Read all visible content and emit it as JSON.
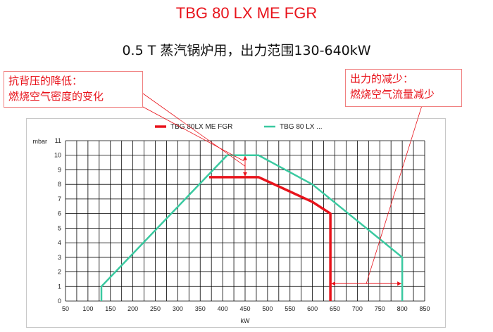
{
  "title": "TBG 80 LX ME FGR",
  "subtitle": "0.5 T 蒸汽锅炉用，出力范围130-640kW",
  "annotations": {
    "left": {
      "line1": "抗背压的降低：",
      "line2": "燃烧空气密度的变化"
    },
    "right": {
      "line1": "出力的减少：",
      "line2": "燃烧空气流量减少"
    }
  },
  "colors": {
    "red": "#e8131b",
    "green": "#3ac9a0",
    "grid": "#000000"
  },
  "chart_data": {
    "type": "line",
    "xlabel": "kW",
    "ylabel": "mbar",
    "xlim": [
      50,
      850
    ],
    "ylim": [
      0,
      11
    ],
    "xticks": [
      50,
      100,
      150,
      200,
      250,
      300,
      350,
      400,
      450,
      500,
      550,
      600,
      650,
      700,
      750,
      800,
      850
    ],
    "yticks": [
      0,
      1,
      2,
      3,
      4,
      5,
      6,
      7,
      8,
      9,
      10,
      11
    ],
    "minor_x_step": 25,
    "grid": true,
    "legend_position": "top-center",
    "series": [
      {
        "name": "TBG 80LX ME FGR",
        "color": "#e8131b",
        "points": [
          [
            640,
            0
          ],
          [
            640,
            6.0
          ],
          [
            600,
            6.8
          ],
          [
            480,
            8.5
          ],
          [
            370,
            8.5
          ]
        ]
      },
      {
        "name": "TBG 80 LX ...",
        "color": "#3ac9a0",
        "points": [
          [
            130,
            0
          ],
          [
            130,
            1.0
          ],
          [
            410,
            10.0
          ],
          [
            480,
            10.0
          ],
          [
            600,
            8.0
          ],
          [
            800,
            3.0
          ],
          [
            800,
            0
          ]
        ]
      }
    ],
    "markers": [
      {
        "type": "double-arrow-vertical",
        "x": 450,
        "y1": 8.5,
        "y2": 10.0
      },
      {
        "type": "double-arrow-horizontal",
        "y": 1.2,
        "x1": 640,
        "x2": 800
      }
    ]
  }
}
